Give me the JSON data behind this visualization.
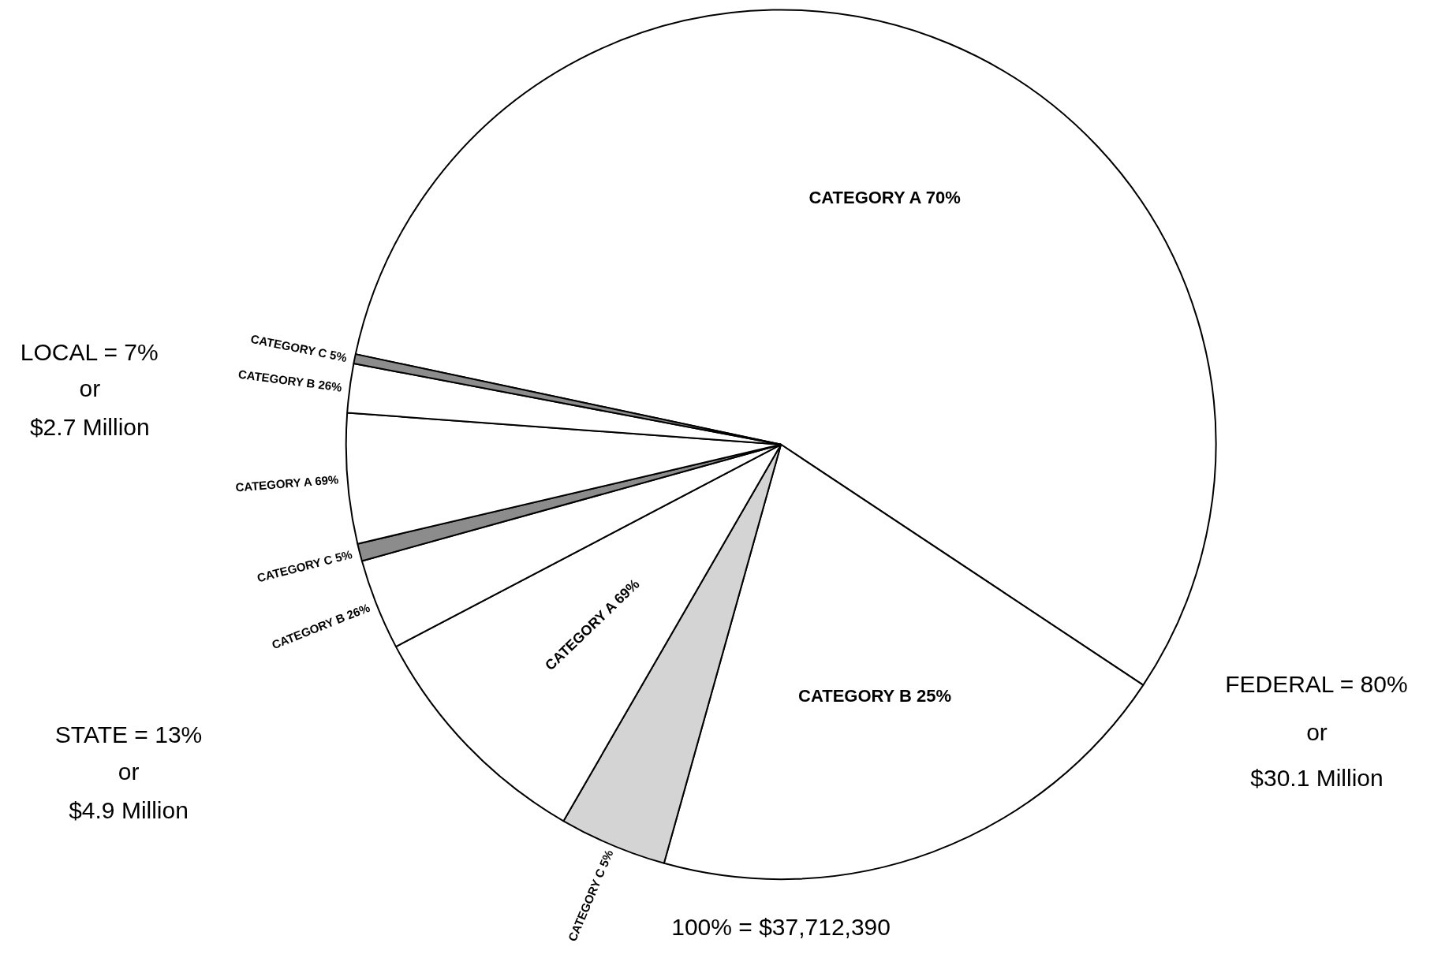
{
  "chart_data": {
    "type": "pie",
    "categories": [
      "CATEGORY A 70%",
      "CATEGORY B 25%",
      "CATEGORY C 5%",
      "CATEGORY A 69%",
      "CATEGORY B 26%",
      "CATEGORY C 5%",
      "CATEGORY A 69%",
      "CATEGORY B 26%",
      "CATEGORY C 5%"
    ],
    "values": [
      56,
      20,
      4,
      8.97,
      3.38,
      0.65,
      4.83,
      1.82,
      0.35
    ],
    "colors": [
      "#ffffff",
      "#ffffff",
      "#d4d4d4",
      "#ffffff",
      "#ffffff",
      "#8c8c8c",
      "#ffffff",
      "#ffffff",
      "#8c8c8c"
    ],
    "annotations": [
      "LOCAL = 7%",
      "or",
      "$2.7 Million",
      "STATE = 13%",
      "or",
      "$4.9 Million",
      "FEDERAL = 80%",
      "or",
      "$30.1 Million",
      "100% = $37,712,390"
    ]
  }
}
